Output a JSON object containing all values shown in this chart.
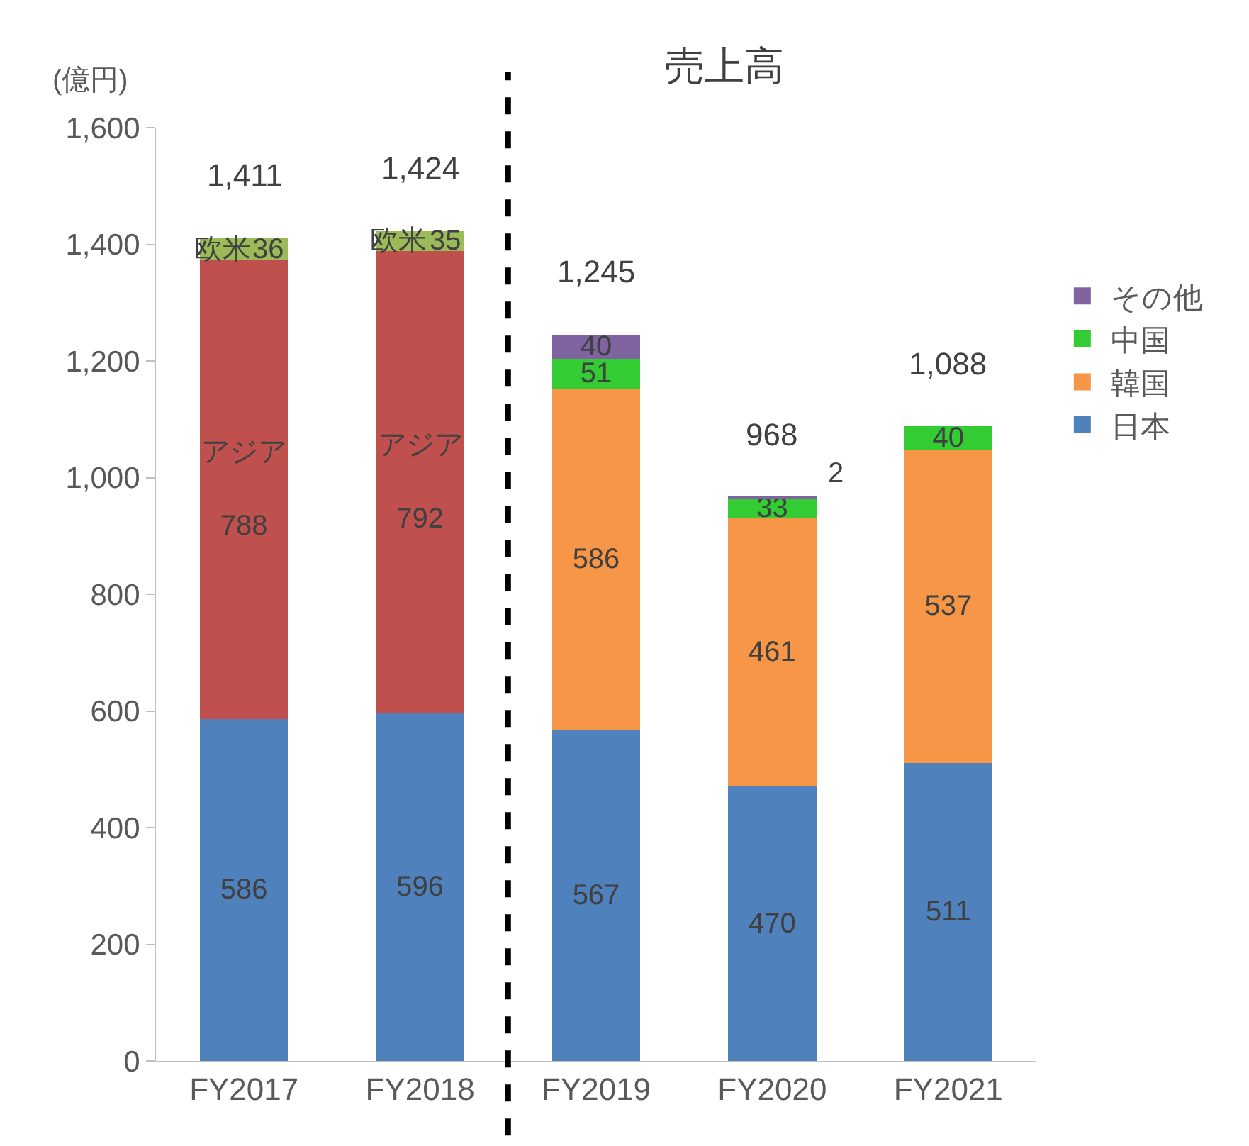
{
  "chart_data": {
    "type": "bar",
    "stacked": true,
    "title": "売上高",
    "ylabel": "(億円)",
    "categories": [
      "FY2017",
      "FY2018",
      "FY2019",
      "FY2020",
      "FY2021"
    ],
    "series": [
      {
        "name": "日本",
        "color": "#4f81bd",
        "values": [
          586,
          596,
          567,
          470,
          511
        ]
      },
      {
        "name": "アジア",
        "color": "#c0504d",
        "values": [
          788,
          792,
          null,
          null,
          null
        ]
      },
      {
        "name": "欧米",
        "color": "#9bbb59",
        "values": [
          36,
          35,
          null,
          null,
          null
        ]
      },
      {
        "name": "韓国",
        "color": "#f79646",
        "values": [
          null,
          null,
          586,
          461,
          537
        ]
      },
      {
        "name": "中国",
        "color": "#33cc33",
        "values": [
          null,
          null,
          51,
          33,
          40
        ]
      },
      {
        "name": "その他",
        "color": "#8064a2",
        "values": [
          null,
          null,
          40,
          2,
          null
        ]
      }
    ],
    "data_labels": true,
    "totals": [
      "1,411",
      "1,424",
      "1,245",
      "968",
      "1,088"
    ],
    "ylim": [
      0,
      1600
    ],
    "yticks": [
      0,
      200,
      400,
      600,
      800,
      {
        "value": 1000,
        "label": "1,000"
      },
      {
        "value": 1200,
        "label": "1,200"
      },
      {
        "value": 1400,
        "label": "1,400"
      },
      {
        "value": 1600,
        "label": "1,600"
      }
    ],
    "grid": false,
    "legend": "right"
  }
}
